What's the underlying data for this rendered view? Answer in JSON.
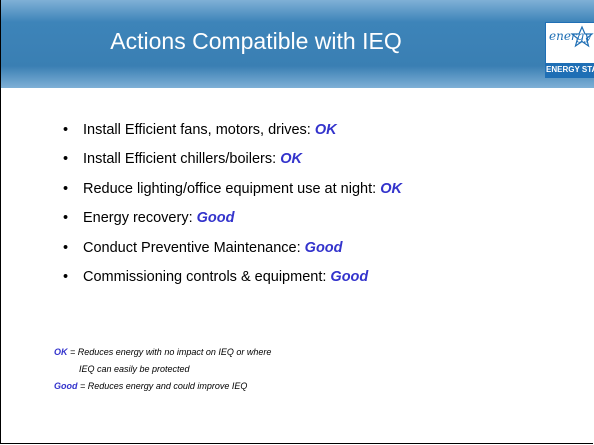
{
  "header": {
    "title": "Actions Compatible with IEQ"
  },
  "logo": {
    "script": "energy",
    "label": "ENERGY STAR"
  },
  "bullets": [
    {
      "text": "Install Efficient fans, motors, drives:",
      "rating": "OK"
    },
    {
      "text": "Install Efficient chillers/boilers:",
      "rating": "OK"
    },
    {
      "text": "Reduce lighting/office equipment use at night:",
      "rating": "OK"
    },
    {
      "text": "Energy recovery:",
      "rating": "Good"
    },
    {
      "text": "Conduct Preventive Maintenance:",
      "rating": "Good"
    },
    {
      "text": "Commissioning controls & equipment:",
      "rating": "Good"
    }
  ],
  "notes": [
    {
      "key": "OK",
      "lines": [
        "= Reduces energy with no impact on IEQ or where",
        "IEQ can easily be protected"
      ]
    },
    {
      "key": "Good",
      "lines": [
        "= Reduces energy and could improve IEQ"
      ]
    }
  ]
}
